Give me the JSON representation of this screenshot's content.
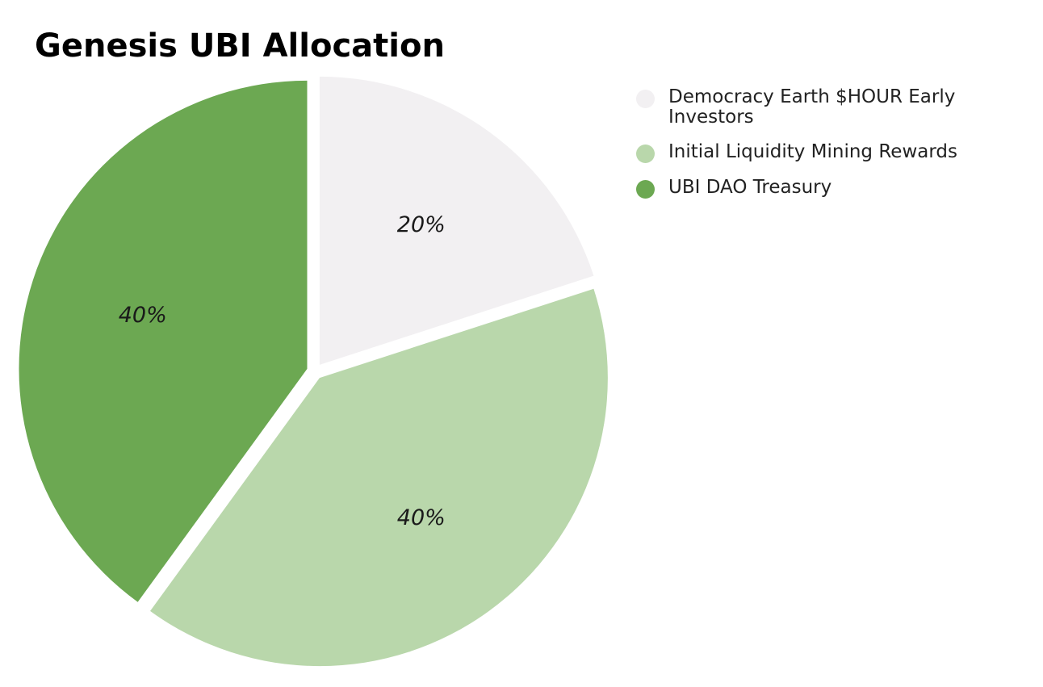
{
  "chart_data": {
    "type": "pie",
    "title": "Genesis UBI Allocation",
    "slices": [
      {
        "name": "Democracy Earth $HOUR Early Investors",
        "value": 20,
        "label": "20%",
        "color": "#f2f0f2"
      },
      {
        "name": "Initial Liquidity Mining Rewards",
        "value": 40,
        "label": "40%",
        "color": "#b9d7ab"
      },
      {
        "name": "UBI DAO Treasury",
        "value": 40,
        "label": "40%",
        "color": "#6ca852"
      }
    ],
    "legend_position": "top-right",
    "exploded": true
  }
}
